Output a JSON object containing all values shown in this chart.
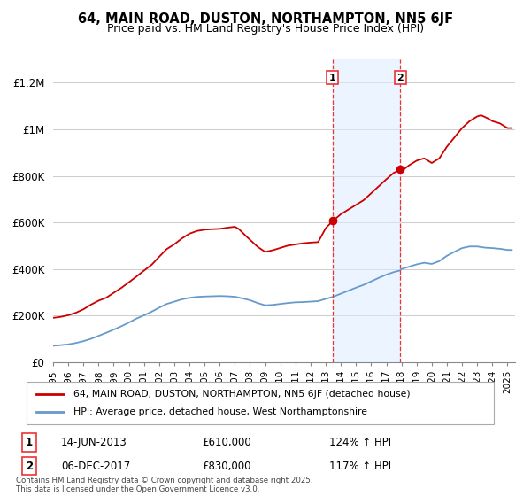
{
  "title": "64, MAIN ROAD, DUSTON, NORTHAMPTON, NN5 6JF",
  "subtitle": "Price paid vs. HM Land Registry's House Price Index (HPI)",
  "ylim": [
    0,
    1300000
  ],
  "xlim_start": 1995.0,
  "xlim_end": 2025.5,
  "yticks": [
    0,
    200000,
    400000,
    600000,
    800000,
    1000000,
    1200000
  ],
  "ytick_labels": [
    "£0",
    "£200K",
    "£400K",
    "£600K",
    "£800K",
    "£1M",
    "£1.2M"
  ],
  "sale1_x": 2013.45,
  "sale1_y": 610000,
  "sale1_label": "14-JUN-2013",
  "sale1_price": "£610,000",
  "sale1_hpi": "124% ↑ HPI",
  "sale2_x": 2017.92,
  "sale2_y": 830000,
  "sale2_label": "06-DEC-2017",
  "sale2_price": "£830,000",
  "sale2_hpi": "117% ↑ HPI",
  "property_color": "#cc0000",
  "hpi_color": "#6699cc",
  "shade_color": "#ddeeff",
  "vline_color": "#ee3333",
  "footnote": "Contains HM Land Registry data © Crown copyright and database right 2025.\nThis data is licensed under the Open Government Licence v3.0.",
  "legend_property": "64, MAIN ROAD, DUSTON, NORTHAMPTON, NN5 6JF (detached house)",
  "legend_hpi": "HPI: Average price, detached house, West Northamptonshire",
  "background_color": "#ffffff",
  "grid_color": "#cccccc",
  "prop_years": [
    1995.0,
    1995.5,
    1996.0,
    1996.5,
    1997.0,
    1997.5,
    1998.0,
    1998.5,
    1999.0,
    1999.5,
    2000.0,
    2000.5,
    2001.0,
    2001.5,
    2002.0,
    2002.5,
    2003.0,
    2003.5,
    2004.0,
    2004.5,
    2005.0,
    2005.5,
    2006.0,
    2006.5,
    2007.0,
    2007.25,
    2007.5,
    2007.75,
    2008.0,
    2008.5,
    2009.0,
    2009.5,
    2010.0,
    2010.5,
    2011.0,
    2011.5,
    2012.0,
    2012.5,
    2013.0,
    2013.45,
    2014.0,
    2014.5,
    2015.0,
    2015.5,
    2016.0,
    2016.5,
    2017.0,
    2017.5,
    2017.92,
    2018.0,
    2018.5,
    2019.0,
    2019.5,
    2020.0,
    2020.5,
    2021.0,
    2021.5,
    2022.0,
    2022.5,
    2023.0,
    2023.25,
    2023.5,
    2023.75,
    2024.0,
    2024.5,
    2025.0,
    2025.3
  ],
  "prop_vals": [
    190000,
    195000,
    202000,
    212000,
    228000,
    248000,
    265000,
    280000,
    300000,
    320000,
    345000,
    370000,
    395000,
    420000,
    455000,
    490000,
    510000,
    535000,
    555000,
    568000,
    572000,
    574000,
    576000,
    578000,
    582000,
    575000,
    560000,
    545000,
    530000,
    500000,
    478000,
    485000,
    495000,
    505000,
    510000,
    515000,
    518000,
    520000,
    580000,
    610000,
    640000,
    660000,
    680000,
    700000,
    730000,
    760000,
    790000,
    818000,
    830000,
    825000,
    850000,
    870000,
    880000,
    860000,
    880000,
    930000,
    970000,
    1010000,
    1040000,
    1060000,
    1065000,
    1058000,
    1050000,
    1040000,
    1030000,
    1010000,
    1010000
  ],
  "hpi_years": [
    1995.0,
    1995.5,
    1996.0,
    1996.5,
    1997.0,
    1997.5,
    1998.0,
    1998.5,
    1999.0,
    1999.5,
    2000.0,
    2000.5,
    2001.0,
    2001.5,
    2002.0,
    2002.5,
    2003.0,
    2003.5,
    2004.0,
    2004.5,
    2005.0,
    2005.5,
    2006.0,
    2006.5,
    2007.0,
    2007.5,
    2008.0,
    2008.5,
    2009.0,
    2009.5,
    2010.0,
    2010.5,
    2011.0,
    2011.5,
    2012.0,
    2012.5,
    2013.0,
    2013.45,
    2014.0,
    2014.5,
    2015.0,
    2015.5,
    2016.0,
    2016.5,
    2017.0,
    2017.5,
    2017.92,
    2018.0,
    2018.5,
    2019.0,
    2019.5,
    2020.0,
    2020.5,
    2021.0,
    2021.5,
    2022.0,
    2022.5,
    2023.0,
    2023.5,
    2024.0,
    2024.5,
    2025.0,
    2025.3
  ],
  "hpi_vals": [
    70000,
    73000,
    77000,
    82000,
    90000,
    100000,
    112000,
    124000,
    138000,
    152000,
    168000,
    185000,
    200000,
    215000,
    232000,
    248000,
    258000,
    268000,
    275000,
    279000,
    280000,
    281000,
    282000,
    281000,
    279000,
    272000,
    264000,
    252000,
    242000,
    244000,
    248000,
    252000,
    255000,
    256000,
    258000,
    260000,
    270000,
    278000,
    292000,
    305000,
    318000,
    330000,
    345000,
    360000,
    374000,
    385000,
    392000,
    398000,
    408000,
    418000,
    425000,
    420000,
    432000,
    455000,
    472000,
    488000,
    495000,
    495000,
    490000,
    488000,
    485000,
    480000,
    480000
  ]
}
